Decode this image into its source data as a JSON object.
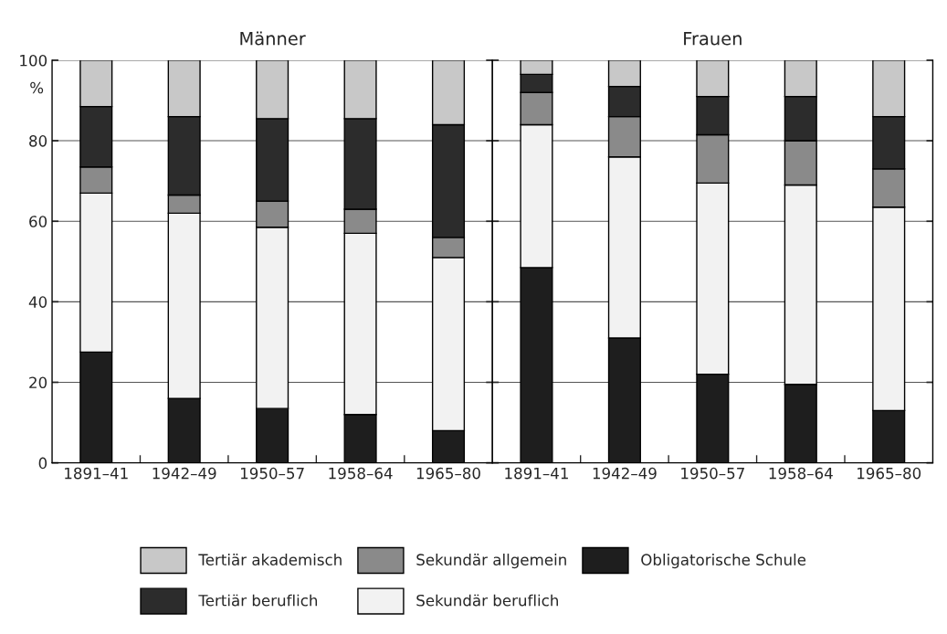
{
  "chart_data": [
    {
      "type": "bar",
      "title": "Männer",
      "ylabel": "%",
      "stacked": true,
      "grid": "y",
      "legend": "bottom",
      "tick_labels": true,
      "ylim": [
        0,
        100
      ],
      "yticks": [
        0,
        20,
        40,
        60,
        80,
        100
      ],
      "categories": [
        "1891–41",
        "1942–49",
        "1950–57",
        "1958–64",
        "1965–80"
      ],
      "series": [
        {
          "name": "Obligatorische Schule",
          "color": "#1e1e1e",
          "values": [
            27.5,
            16,
            13.5,
            12,
            8
          ]
        },
        {
          "name": "Sekundär beruflich",
          "color": "#f2f2f2",
          "values": [
            39.5,
            46,
            45,
            45,
            43
          ]
        },
        {
          "name": "Sekundär allgemein",
          "color": "#8a8a8a",
          "values": [
            6.5,
            4.5,
            6.5,
            6,
            5
          ]
        },
        {
          "name": "Tertiär beruflich",
          "color": "#2c2c2c",
          "values": [
            15,
            19.5,
            20.5,
            22.5,
            28
          ]
        },
        {
          "name": "Tertiär akademisch",
          "color": "#c8c8c8",
          "values": [
            11.5,
            14,
            14.5,
            14.5,
            16
          ]
        }
      ]
    },
    {
      "type": "bar",
      "title": "Frauen",
      "stacked": true,
      "grid": "y",
      "legend": "bottom",
      "tick_labels": "x",
      "ylim": [
        0,
        100
      ],
      "yticks": [
        0,
        20,
        40,
        60,
        80,
        100
      ],
      "categories": [
        "1891–41",
        "1942–49",
        "1950–57",
        "1958–64",
        "1965–80"
      ],
      "series": [
        {
          "name": "Obligatorische Schule",
          "color": "#1e1e1e",
          "values": [
            48.5,
            31,
            22,
            19.5,
            13
          ]
        },
        {
          "name": "Sekundär beruflich",
          "color": "#f2f2f2",
          "values": [
            35.5,
            45,
            47.5,
            49.5,
            50.5
          ]
        },
        {
          "name": "Sekundär allgemein",
          "color": "#8a8a8a",
          "values": [
            8,
            10,
            12,
            11,
            9.5
          ]
        },
        {
          "name": "Tertiär beruflich",
          "color": "#2c2c2c",
          "values": [
            4.5,
            7.5,
            9.5,
            11,
            13
          ]
        },
        {
          "name": "Tertiär akademisch",
          "color": "#c8c8c8",
          "values": [
            3.5,
            6.5,
            9,
            9,
            14
          ]
        }
      ]
    }
  ]
}
